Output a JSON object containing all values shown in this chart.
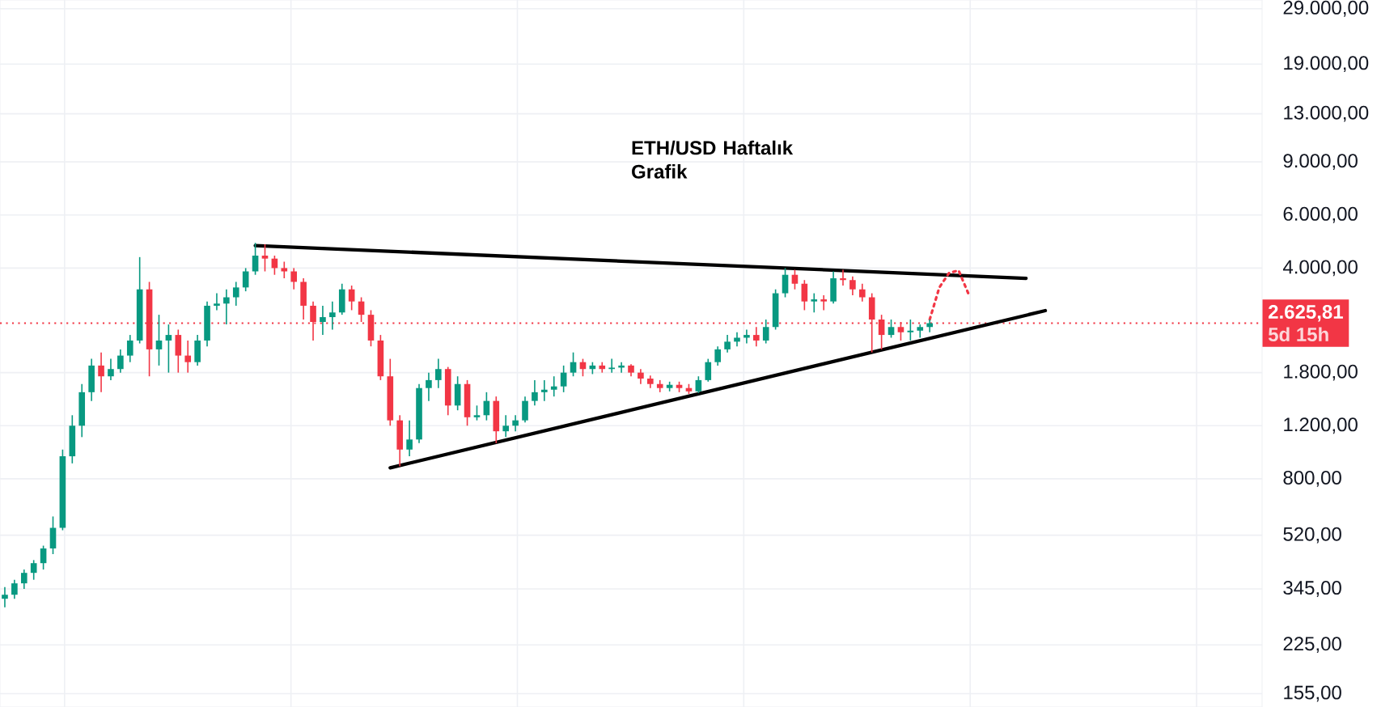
{
  "chart_data": {
    "type": "candlestick",
    "log": "y",
    "grid": true,
    "tick_labels": "y",
    "ylim": [
      140,
      31000
    ],
    "yticks": [
      {
        "value": 155,
        "label": "155,00"
      },
      {
        "value": 225,
        "label": "225,00"
      },
      {
        "value": 345,
        "label": "345,00"
      },
      {
        "value": 520,
        "label": "520,00"
      },
      {
        "value": 800,
        "label": "800,00"
      },
      {
        "value": 1200,
        "label": "1.200,00"
      },
      {
        "value": 1800,
        "label": "1.800,00"
      },
      {
        "value": 4000,
        "label": "4.000,00"
      },
      {
        "value": 6000,
        "label": "6.000,00"
      },
      {
        "value": 9000,
        "label": "9.000,00"
      },
      {
        "value": 13000,
        "label": "13.000,00"
      },
      {
        "value": 19000,
        "label": "19.000,00"
      },
      {
        "value": 29000,
        "label": "29.000,00"
      }
    ],
    "categories": [
      null,
      null,
      null,
      null,
      null,
      null,
      null,
      null,
      null,
      null,
      null,
      null,
      null,
      null,
      null,
      null,
      null,
      null,
      null,
      null,
      null,
      null,
      null,
      null,
      null,
      null,
      null,
      null,
      null,
      null,
      null,
      null,
      null,
      null,
      null,
      null,
      null,
      null,
      null,
      null,
      null,
      null,
      null,
      null,
      null,
      null,
      null,
      null,
      null,
      null,
      null,
      null,
      null,
      null,
      null,
      null,
      null,
      null,
      null,
      null,
      null,
      null,
      null,
      null,
      null,
      null,
      null,
      null,
      null,
      null,
      null,
      null,
      null,
      null,
      null,
      null,
      null,
      null,
      null,
      null,
      null,
      null,
      null,
      null,
      null,
      null,
      null,
      null,
      null,
      null,
      null,
      null,
      null,
      null,
      null,
      null,
      null,
      null,
      null,
      null,
      null,
      null,
      null,
      null,
      null,
      null,
      null,
      null,
      null,
      null,
      null,
      null,
      null,
      null,
      null,
      null,
      null,
      null,
      null,
      null,
      null,
      null,
      null,
      null,
      null,
      null,
      null,
      null,
      null,
      null,
      null
    ],
    "ohlc": [
      [
        320,
        350,
        300,
        330
      ],
      [
        330,
        370,
        320,
        360
      ],
      [
        360,
        400,
        345,
        390
      ],
      [
        390,
        430,
        370,
        420
      ],
      [
        420,
        480,
        400,
        470
      ],
      [
        470,
        600,
        450,
        550
      ],
      [
        550,
        1000,
        540,
        950
      ],
      [
        950,
        1300,
        900,
        1200
      ],
      [
        1200,
        1650,
        1100,
        1550
      ],
      [
        1550,
        2000,
        1450,
        1900
      ],
      [
        1900,
        2100,
        1550,
        1750
      ],
      [
        1750,
        2000,
        1700,
        1850
      ],
      [
        1850,
        2150,
        1800,
        2050
      ],
      [
        2050,
        2400,
        1950,
        2300
      ],
      [
        2300,
        4350,
        2250,
        3400
      ],
      [
        3400,
        3600,
        1750,
        2150
      ],
      [
        2150,
        2800,
        1900,
        2300
      ],
      [
        2300,
        2600,
        1800,
        2400
      ],
      [
        2400,
        2500,
        1800,
        2050
      ],
      [
        2050,
        2300,
        1800,
        1950
      ],
      [
        1950,
        2400,
        1900,
        2300
      ],
      [
        2300,
        3100,
        2200,
        3000
      ],
      [
        3000,
        3300,
        2900,
        3050
      ],
      [
        3050,
        3400,
        2600,
        3200
      ],
      [
        3200,
        3600,
        3000,
        3450
      ],
      [
        3450,
        4000,
        3350,
        3900
      ],
      [
        3900,
        4850,
        3800,
        4400
      ],
      [
        4400,
        4800,
        3900,
        4300
      ],
      [
        4300,
        4400,
        3800,
        4000
      ],
      [
        4000,
        4200,
        3700,
        3900
      ],
      [
        3900,
        4000,
        3400,
        3600
      ],
      [
        3600,
        3700,
        2700,
        3000
      ],
      [
        3000,
        3100,
        2300,
        2650
      ],
      [
        2650,
        3000,
        2400,
        2750
      ],
      [
        2750,
        3100,
        2500,
        2850
      ],
      [
        2850,
        3550,
        2800,
        3400
      ],
      [
        3400,
        3500,
        2900,
        3100
      ],
      [
        3100,
        3200,
        2650,
        2800
      ],
      [
        2800,
        2900,
        2200,
        2300
      ],
      [
        2300,
        2400,
        1700,
        1750
      ],
      [
        1750,
        2000,
        1200,
        1250
      ],
      [
        1250,
        1300,
        880,
        1000
      ],
      [
        1000,
        1250,
        950,
        1080
      ],
      [
        1080,
        1650,
        1050,
        1600
      ],
      [
        1600,
        1800,
        1450,
        1700
      ],
      [
        1700,
        2000,
        1600,
        1850
      ],
      [
        1850,
        1880,
        1300,
        1400
      ],
      [
        1400,
        1750,
        1350,
        1650
      ],
      [
        1650,
        1700,
        1200,
        1280
      ],
      [
        1280,
        1400,
        1250,
        1300
      ],
      [
        1300,
        1550,
        1250,
        1450
      ],
      [
        1450,
        1500,
        1050,
        1150
      ],
      [
        1150,
        1300,
        1100,
        1200
      ],
      [
        1200,
        1300,
        1150,
        1250
      ],
      [
        1250,
        1500,
        1230,
        1450
      ],
      [
        1450,
        1700,
        1400,
        1550
      ],
      [
        1550,
        1700,
        1450,
        1580
      ],
      [
        1580,
        1750,
        1500,
        1620
      ],
      [
        1620,
        1900,
        1550,
        1800
      ],
      [
        1800,
        2100,
        1750,
        1950
      ],
      [
        1950,
        2000,
        1750,
        1850
      ],
      [
        1850,
        1950,
        1780,
        1900
      ],
      [
        1900,
        1950,
        1800,
        1850
      ],
      [
        1850,
        2000,
        1800,
        1870
      ],
      [
        1870,
        1950,
        1800,
        1900
      ],
      [
        1900,
        1920,
        1750,
        1800
      ],
      [
        1800,
        1850,
        1650,
        1720
      ],
      [
        1720,
        1760,
        1600,
        1650
      ],
      [
        1650,
        1700,
        1550,
        1600
      ],
      [
        1600,
        1680,
        1560,
        1640
      ],
      [
        1640,
        1680,
        1550,
        1600
      ],
      [
        1600,
        1650,
        1530,
        1560
      ],
      [
        1560,
        1750,
        1540,
        1700
      ],
      [
        1700,
        2000,
        1680,
        1950
      ],
      [
        1950,
        2200,
        1900,
        2150
      ],
      [
        2150,
        2400,
        2100,
        2280
      ],
      [
        2280,
        2450,
        2200,
        2350
      ],
      [
        2350,
        2500,
        2250,
        2400
      ],
      [
        2400,
        2550,
        2200,
        2300
      ],
      [
        2300,
        2700,
        2250,
        2550
      ],
      [
        2550,
        3400,
        2500,
        3300
      ],
      [
        3300,
        4000,
        3200,
        3800
      ],
      [
        3800,
        3950,
        3400,
        3550
      ],
      [
        3550,
        3650,
        2900,
        3100
      ],
      [
        3100,
        3300,
        2850,
        3150
      ],
      [
        3150,
        3250,
        2900,
        3100
      ],
      [
        3100,
        3900,
        3050,
        3700
      ],
      [
        3700,
        3950,
        3500,
        3650
      ],
      [
        3650,
        3750,
        3250,
        3400
      ],
      [
        3400,
        3550,
        3100,
        3200
      ],
      [
        3200,
        3300,
        2100,
        2700
      ],
      [
        2700,
        2800,
        2150,
        2400
      ],
      [
        2400,
        2700,
        2350,
        2550
      ],
      [
        2550,
        2650,
        2300,
        2450
      ],
      [
        2450,
        2700,
        2300,
        2480
      ],
      [
        2480,
        2600,
        2350,
        2550
      ],
      [
        2550,
        2700,
        2450,
        2625.81
      ],
      null,
      null,
      null,
      null,
      null,
      null,
      null,
      null,
      null,
      null,
      null,
      null,
      null,
      null,
      null,
      null,
      null,
      null,
      null,
      null,
      null,
      null,
      null,
      null,
      null,
      null,
      null,
      null,
      null,
      null,
      null,
      null,
      null,
      null
    ],
    "colors": [
      "#089981",
      "#089981",
      "#089981",
      "#089981",
      "#089981",
      "#089981",
      "#089981",
      "#089981",
      "#089981",
      "#089981",
      "#f23645",
      "#089981",
      "#089981",
      "#089981",
      "#089981",
      "#f23645",
      "#089981",
      "#089981",
      "#f23645",
      "#f23645",
      "#089981",
      "#089981",
      "#089981",
      "#089981",
      "#089981",
      "#089981",
      "#089981",
      "#f23645",
      "#f23645",
      "#f23645",
      "#f23645",
      "#f23645",
      "#f23645",
      "#089981",
      "#089981",
      "#089981",
      "#f23645",
      "#f23645",
      "#f23645",
      "#f23645",
      "#f23645",
      "#f23645",
      "#089981",
      "#089981",
      "#089981",
      "#089981",
      "#f23645",
      "#089981",
      "#f23645",
      "#089981",
      "#089981",
      "#f23645",
      "#089981",
      "#089981",
      "#089981",
      "#089981",
      "#089981",
      "#089981",
      "#089981",
      "#089981",
      "#f23645",
      "#089981",
      "#f23645",
      "#089981",
      "#089981",
      "#f23645",
      "#f23645",
      "#f23645",
      "#f23645",
      "#089981",
      "#f23645",
      "#f23645",
      "#089981",
      "#089981",
      "#089981",
      "#089981",
      "#089981",
      "#089981",
      "#f23645",
      "#089981",
      "#089981",
      "#089981",
      "#f23645",
      "#f23645",
      "#089981",
      "#f23645",
      "#089981",
      "#f23645",
      "#f23645",
      "#f23645",
      "#f23645",
      "#f23645",
      "#089981",
      "#f23645",
      "#089981",
      "#089981",
      "#089981",
      null,
      null,
      null,
      null,
      null,
      null,
      null,
      null,
      null,
      null,
      null,
      null,
      null,
      null,
      null,
      null,
      null,
      null,
      null,
      null,
      null,
      null,
      null,
      null,
      null,
      null,
      null,
      null,
      null,
      null,
      null,
      null,
      null,
      null
    ],
    "series": [
      {
        "type": "line",
        "color": "#000000",
        "line_style": "solid",
        "values": [
          null,
          null,
          null,
          null,
          null,
          null,
          null,
          null,
          null,
          null,
          null,
          null,
          null,
          null,
          null,
          null,
          null,
          null,
          null,
          null,
          null,
          null,
          null,
          null,
          null,
          null,
          4750,
          null,
          null,
          null,
          null,
          null,
          null,
          null,
          null,
          null,
          null,
          null,
          null,
          null,
          null,
          null,
          null,
          null,
          null,
          null,
          null,
          null,
          null,
          null,
          null,
          null,
          null,
          null,
          null,
          null,
          null,
          null,
          null,
          null,
          null,
          null,
          null,
          null,
          null,
          null,
          null,
          null,
          null,
          null,
          null,
          null,
          null,
          null,
          null,
          null,
          null,
          null,
          null,
          null,
          null,
          null,
          null,
          null,
          null,
          null,
          null,
          null,
          null,
          null,
          null,
          null,
          null,
          null,
          null,
          null,
          null,
          null,
          null,
          null,
          null,
          null,
          null,
          null,
          null,
          null,
          3700,
          null,
          null,
          null,
          null,
          null,
          null,
          null,
          null,
          null,
          null,
          null,
          null,
          null,
          null,
          null,
          null,
          null,
          null,
          null,
          null,
          null,
          null,
          null,
          null
        ]
      },
      {
        "type": "line",
        "color": "#000000",
        "line_style": "solid",
        "values": [
          null,
          null,
          null,
          null,
          null,
          null,
          null,
          null,
          null,
          null,
          null,
          null,
          null,
          null,
          null,
          null,
          null,
          null,
          null,
          null,
          null,
          null,
          null,
          null,
          null,
          null,
          null,
          null,
          null,
          null,
          null,
          null,
          null,
          null,
          null,
          null,
          null,
          null,
          null,
          null,
          870,
          null,
          null,
          null,
          null,
          null,
          null,
          null,
          null,
          null,
          null,
          null,
          null,
          null,
          null,
          null,
          null,
          null,
          null,
          null,
          null,
          null,
          null,
          null,
          null,
          null,
          null,
          null,
          null,
          null,
          null,
          null,
          null,
          null,
          null,
          null,
          null,
          null,
          null,
          null,
          null,
          null,
          null,
          null,
          null,
          null,
          null,
          null,
          null,
          null,
          null,
          null,
          null,
          null,
          null,
          null,
          null,
          null,
          null,
          null,
          null,
          null,
          null,
          null,
          null,
          null,
          null,
          null,
          2890,
          null,
          null,
          null,
          null,
          null,
          null,
          null,
          null,
          null,
          null,
          null,
          null,
          null,
          null,
          null,
          null,
          null,
          null,
          null,
          null,
          null,
          null
        ]
      },
      {
        "type": "line",
        "color": "#f23645",
        "line_style": "dotted",
        "values": [
          null,
          null,
          null,
          null,
          null,
          null,
          null,
          null,
          null,
          null,
          null,
          null,
          null,
          null,
          null,
          null,
          null,
          null,
          null,
          null,
          null,
          null,
          null,
          null,
          null,
          null,
          null,
          null,
          null,
          null,
          null,
          null,
          null,
          null,
          null,
          null,
          null,
          null,
          null,
          null,
          null,
          null,
          null,
          null,
          null,
          null,
          null,
          null,
          null,
          null,
          null,
          null,
          null,
          null,
          null,
          null,
          null,
          null,
          null,
          null,
          null,
          null,
          null,
          null,
          null,
          null,
          null,
          null,
          null,
          null,
          null,
          null,
          null,
          null,
          null,
          null,
          null,
          null,
          null,
          null,
          null,
          null,
          null,
          null,
          null,
          null,
          null,
          null,
          null,
          null,
          null,
          null,
          null,
          null,
          null,
          null,
          2700,
          3450,
          3850,
          3930,
          3300,
          null,
          null,
          null,
          null,
          null,
          null,
          null,
          null,
          null,
          null,
          null,
          null,
          null,
          null,
          null,
          null,
          null,
          null,
          null,
          null,
          null,
          null,
          null,
          null,
          null,
          null,
          null,
          null,
          null,
          null
        ]
      }
    ],
    "ref_lines": [
      {
        "axis": "y",
        "value": 2625.81,
        "label": "2.625,81",
        "color": "#f23645",
        "line_style": "dotted"
      }
    ],
    "annotations": [
      "**ETH/USD Haftalık Grafik**",
      "5d 15h"
    ]
  }
}
